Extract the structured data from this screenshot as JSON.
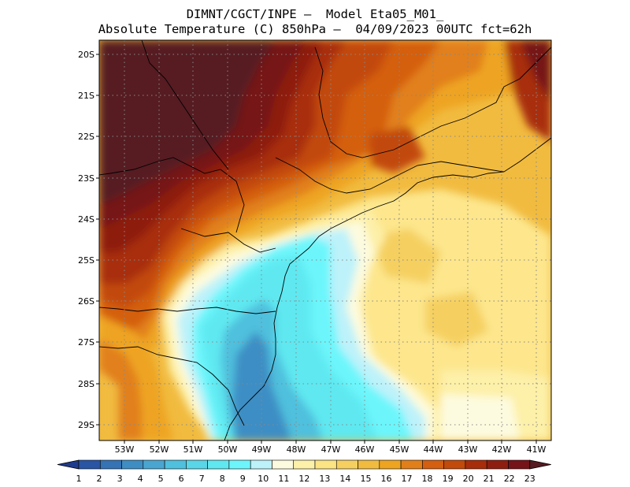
{
  "header": {
    "line1": "DIMNT/CGCT/INPE –  Model Eta05_M01_",
    "line2": "Absolute Temperature (C) 850hPa –  04/09/2023 00UTC fct=62h"
  },
  "map": {
    "lon_range": [
      -53.75,
      -40.5
    ],
    "lat_range": [
      -29.4,
      -19.8
    ],
    "lon_ticks": [
      "53W",
      "52W",
      "51W",
      "50W",
      "49W",
      "48W",
      "47W",
      "46W",
      "45W",
      "44W",
      "43W",
      "42W",
      "41W"
    ],
    "lat_ticks": [
      "20S",
      "21S",
      "22S",
      "23S",
      "24S",
      "25S",
      "26S",
      "27S",
      "28S",
      "29S"
    ]
  },
  "colorbar": {
    "labels": [
      "1",
      "2",
      "3",
      "4",
      "5",
      "6",
      "7",
      "8",
      "9",
      "10",
      "11",
      "12",
      "13",
      "14",
      "15",
      "16",
      "17",
      "18",
      "19",
      "20",
      "21",
      "22",
      "23"
    ],
    "colors": [
      "#1f3b8c",
      "#2a55a5",
      "#3573b5",
      "#3e8ec4",
      "#4aa6d1",
      "#4fc0dd",
      "#59d6e8",
      "#5fe8f0",
      "#6cf6fb",
      "#bdf2fa",
      "#fdfbdf",
      "#fdf0a8",
      "#fce383",
      "#f5d061",
      "#f1bb3f",
      "#eea421",
      "#e1801a",
      "#d45f10",
      "#c24a0a",
      "#a82d0a",
      "#8e1f10",
      "#761319",
      "#561a21"
    ]
  }
}
